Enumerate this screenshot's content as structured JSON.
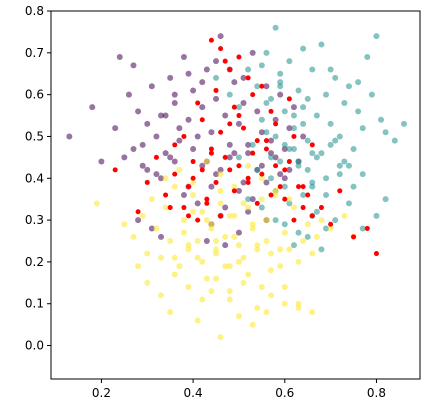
{
  "chart_data": {
    "type": "scatter",
    "title": "",
    "xlabel": "",
    "ylabel": "",
    "xlim": [
      0.09,
      0.895
    ],
    "ylim": [
      -0.08,
      0.8
    ],
    "xticks": [
      0.2,
      0.4,
      0.6,
      0.8
    ],
    "xtick_labels": [
      "0.2",
      "0.4",
      "0.6",
      "0.8"
    ],
    "yticks": [
      0.0,
      0.1,
      0.2,
      0.3,
      0.4,
      0.5,
      0.6,
      0.7,
      0.8
    ],
    "ytick_labels": [
      "0.0",
      "0.1",
      "0.2",
      "0.3",
      "0.4",
      "0.5",
      "0.6",
      "0.7",
      "0.8"
    ],
    "grid": false,
    "legend": "none",
    "series": [
      {
        "color": "#440154",
        "x": [
          0.13,
          0.18,
          0.2,
          0.23,
          0.24,
          0.25,
          0.26,
          0.27,
          0.28,
          0.29,
          0.3,
          0.31,
          0.32,
          0.33,
          0.34,
          0.35,
          0.36,
          0.37,
          0.38,
          0.39,
          0.4,
          0.41,
          0.42,
          0.43,
          0.44,
          0.45,
          0.46,
          0.47,
          0.48,
          0.49,
          0.5,
          0.51,
          0.52,
          0.53,
          0.54,
          0.55,
          0.56,
          0.57,
          0.58,
          0.59,
          0.6,
          0.61,
          0.62,
          0.63,
          0.64,
          0.3,
          0.33,
          0.36,
          0.39,
          0.42,
          0.45,
          0.48,
          0.51,
          0.54,
          0.57,
          0.6,
          0.38,
          0.41,
          0.44,
          0.47,
          0.5,
          0.53,
          0.56,
          0.59,
          0.27,
          0.29,
          0.32,
          0.35,
          0.37,
          0.4,
          0.43,
          0.46,
          0.49,
          0.52,
          0.55,
          0.58,
          0.61,
          0.34,
          0.36,
          0.39,
          0.42,
          0.45,
          0.48,
          0.51,
          0.28,
          0.31,
          0.46,
          0.5,
          0.33,
          0.44,
          0.47,
          0.52,
          0.56,
          0.43
        ],
        "y": [
          0.5,
          0.57,
          0.44,
          0.52,
          0.69,
          0.45,
          0.6,
          0.67,
          0.56,
          0.48,
          0.53,
          0.62,
          0.5,
          0.55,
          0.46,
          0.64,
          0.58,
          0.52,
          0.69,
          0.54,
          0.61,
          0.5,
          0.57,
          0.66,
          0.51,
          0.59,
          0.74,
          0.55,
          0.48,
          0.63,
          0.53,
          0.58,
          0.46,
          0.7,
          0.56,
          0.51,
          0.62,
          0.49,
          0.54,
          0.6,
          0.47,
          0.52,
          0.57,
          0.44,
          0.5,
          0.42,
          0.4,
          0.44,
          0.38,
          0.43,
          0.41,
          0.45,
          0.39,
          0.42,
          0.46,
          0.4,
          0.36,
          0.34,
          0.38,
          0.33,
          0.37,
          0.35,
          0.39,
          0.41,
          0.47,
          0.43,
          0.41,
          0.45,
          0.49,
          0.47,
          0.44,
          0.42,
          0.46,
          0.48,
          0.43,
          0.45,
          0.42,
          0.55,
          0.6,
          0.65,
          0.63,
          0.68,
          0.66,
          0.64,
          0.3,
          0.28,
          0.31,
          0.27,
          0.26,
          0.29,
          0.24,
          0.32,
          0.3,
          0.25
        ]
      },
      {
        "color": "#21918c",
        "x": [
          0.45,
          0.48,
          0.5,
          0.52,
          0.54,
          0.55,
          0.56,
          0.57,
          0.58,
          0.59,
          0.6,
          0.61,
          0.62,
          0.63,
          0.64,
          0.65,
          0.66,
          0.67,
          0.68,
          0.69,
          0.7,
          0.71,
          0.72,
          0.73,
          0.74,
          0.75,
          0.76,
          0.77,
          0.78,
          0.79,
          0.8,
          0.81,
          0.82,
          0.84,
          0.86,
          0.5,
          0.53,
          0.56,
          0.59,
          0.62,
          0.65,
          0.68,
          0.71,
          0.74,
          0.77,
          0.57,
          0.6,
          0.63,
          0.66,
          0.69,
          0.72,
          0.75,
          0.58,
          0.61,
          0.64,
          0.67,
          0.7,
          0.73,
          0.52,
          0.55,
          0.58,
          0.61,
          0.64,
          0.67,
          0.6,
          0.63,
          0.66,
          0.69,
          0.62,
          0.65,
          0.68,
          0.71,
          0.74,
          0.77,
          0.8,
          0.56,
          0.59,
          0.62,
          0.65,
          0.54,
          0.57,
          0.6,
          0.63,
          0.66,
          0.69,
          0.72,
          0.55,
          0.59,
          0.64,
          0.7,
          0.76,
          0.82,
          0.58,
          0.66
        ],
        "y": [
          0.64,
          0.6,
          0.57,
          0.66,
          0.62,
          0.54,
          0.7,
          0.59,
          0.76,
          0.63,
          0.56,
          0.68,
          0.52,
          0.61,
          0.57,
          0.49,
          0.66,
          0.55,
          0.72,
          0.6,
          0.53,
          0.64,
          0.5,
          0.58,
          0.62,
          0.47,
          0.56,
          0.52,
          0.69,
          0.6,
          0.74,
          0.54,
          0.51,
          0.49,
          0.53,
          0.45,
          0.48,
          0.51,
          0.44,
          0.47,
          0.42,
          0.46,
          0.49,
          0.43,
          0.41,
          0.4,
          0.38,
          0.43,
          0.39,
          0.36,
          0.41,
          0.38,
          0.5,
          0.47,
          0.53,
          0.45,
          0.48,
          0.44,
          0.35,
          0.33,
          0.37,
          0.34,
          0.36,
          0.32,
          0.29,
          0.27,
          0.31,
          0.28,
          0.24,
          0.26,
          0.23,
          0.3,
          0.34,
          0.28,
          0.31,
          0.58,
          0.62,
          0.55,
          0.59,
          0.42,
          0.45,
          0.48,
          0.44,
          0.46,
          0.4,
          0.43,
          0.67,
          0.65,
          0.71,
          0.66,
          0.63,
          0.35,
          0.3,
          0.38
        ]
      },
      {
        "color": "#fde725",
        "x": [
          0.19,
          0.25,
          0.27,
          0.28,
          0.29,
          0.3,
          0.31,
          0.32,
          0.33,
          0.34,
          0.35,
          0.36,
          0.37,
          0.38,
          0.39,
          0.4,
          0.41,
          0.42,
          0.43,
          0.44,
          0.45,
          0.46,
          0.47,
          0.48,
          0.49,
          0.5,
          0.51,
          0.52,
          0.53,
          0.54,
          0.55,
          0.56,
          0.57,
          0.58,
          0.59,
          0.6,
          0.61,
          0.62,
          0.63,
          0.64,
          0.65,
          0.66,
          0.67,
          0.68,
          0.7,
          0.73,
          0.75,
          0.3,
          0.33,
          0.36,
          0.39,
          0.42,
          0.45,
          0.48,
          0.51,
          0.54,
          0.57,
          0.6,
          0.63,
          0.34,
          0.37,
          0.4,
          0.43,
          0.46,
          0.49,
          0.52,
          0.55,
          0.58,
          0.61,
          0.38,
          0.41,
          0.44,
          0.47,
          0.5,
          0.53,
          0.56,
          0.59,
          0.4,
          0.43,
          0.46,
          0.49,
          0.52,
          0.55,
          0.36,
          0.39,
          0.42,
          0.45,
          0.48,
          0.51,
          0.54,
          0.57,
          0.41,
          0.46,
          0.5,
          0.53,
          0.56,
          0.6,
          0.44,
          0.48,
          0.35,
          0.63,
          0.66,
          0.45
        ],
        "y": [
          0.34,
          0.29,
          0.26,
          0.19,
          0.31,
          0.22,
          0.35,
          0.28,
          0.21,
          0.33,
          0.25,
          0.38,
          0.19,
          0.3,
          0.24,
          0.36,
          0.21,
          0.32,
          0.16,
          0.28,
          0.23,
          0.37,
          0.19,
          0.31,
          0.26,
          0.2,
          0.34,
          0.17,
          0.29,
          0.23,
          0.14,
          0.3,
          0.22,
          0.36,
          0.19,
          0.27,
          0.23,
          0.33,
          0.2,
          0.25,
          0.29,
          0.22,
          0.26,
          0.3,
          0.28,
          0.31,
          0.26,
          0.15,
          0.12,
          0.17,
          0.14,
          0.11,
          0.16,
          0.13,
          0.15,
          0.09,
          0.12,
          0.14,
          0.1,
          0.4,
          0.42,
          0.39,
          0.44,
          0.41,
          0.38,
          0.43,
          0.4,
          0.37,
          0.35,
          0.27,
          0.25,
          0.29,
          0.26,
          0.24,
          0.28,
          0.25,
          0.23,
          0.32,
          0.3,
          0.34,
          0.31,
          0.33,
          0.35,
          0.21,
          0.23,
          0.2,
          0.22,
          0.19,
          0.21,
          0.24,
          0.18,
          0.06,
          0.02,
          0.07,
          0.05,
          0.08,
          0.1,
          0.13,
          0.11,
          0.08,
          0.09,
          0.08,
          0.25
        ]
      },
      {
        "color": "#ff0000",
        "x": [
          0.23,
          0.28,
          0.3,
          0.32,
          0.34,
          0.36,
          0.38,
          0.39,
          0.4,
          0.41,
          0.42,
          0.43,
          0.44,
          0.45,
          0.46,
          0.47,
          0.48,
          0.49,
          0.5,
          0.51,
          0.52,
          0.53,
          0.54,
          0.55,
          0.56,
          0.57,
          0.58,
          0.59,
          0.6,
          0.61,
          0.62,
          0.63,
          0.64,
          0.65,
          0.66,
          0.68,
          0.7,
          0.72,
          0.75,
          0.78,
          0.8,
          0.36,
          0.4,
          0.44,
          0.48,
          0.52,
          0.56,
          0.6,
          0.64,
          0.38,
          0.42,
          0.46,
          0.5,
          0.54,
          0.58,
          0.62,
          0.66,
          0.41,
          0.45,
          0.49,
          0.53,
          0.57,
          0.61,
          0.46,
          0.47,
          0.44,
          0.5,
          0.48,
          0.52,
          0.55,
          0.43,
          0.39,
          0.35
        ],
        "y": [
          0.42,
          0.32,
          0.39,
          0.45,
          0.36,
          0.41,
          0.33,
          0.38,
          0.44,
          0.3,
          0.42,
          0.35,
          0.47,
          0.39,
          0.31,
          0.45,
          0.53,
          0.37,
          0.43,
          0.52,
          0.4,
          0.46,
          0.34,
          0.41,
          0.49,
          0.36,
          0.43,
          0.38,
          0.35,
          0.44,
          0.3,
          0.38,
          0.33,
          0.36,
          0.31,
          0.33,
          0.29,
          0.37,
          0.26,
          0.28,
          0.22,
          0.48,
          0.4,
          0.46,
          0.42,
          0.39,
          0.47,
          0.42,
          0.38,
          0.5,
          0.54,
          0.51,
          0.55,
          0.49,
          0.53,
          0.5,
          0.48,
          0.58,
          0.61,
          0.57,
          0.6,
          0.56,
          0.59,
          0.71,
          0.68,
          0.73,
          0.69,
          0.66,
          0.64,
          0.62,
          0.34,
          0.31,
          0.33
        ]
      }
    ]
  }
}
